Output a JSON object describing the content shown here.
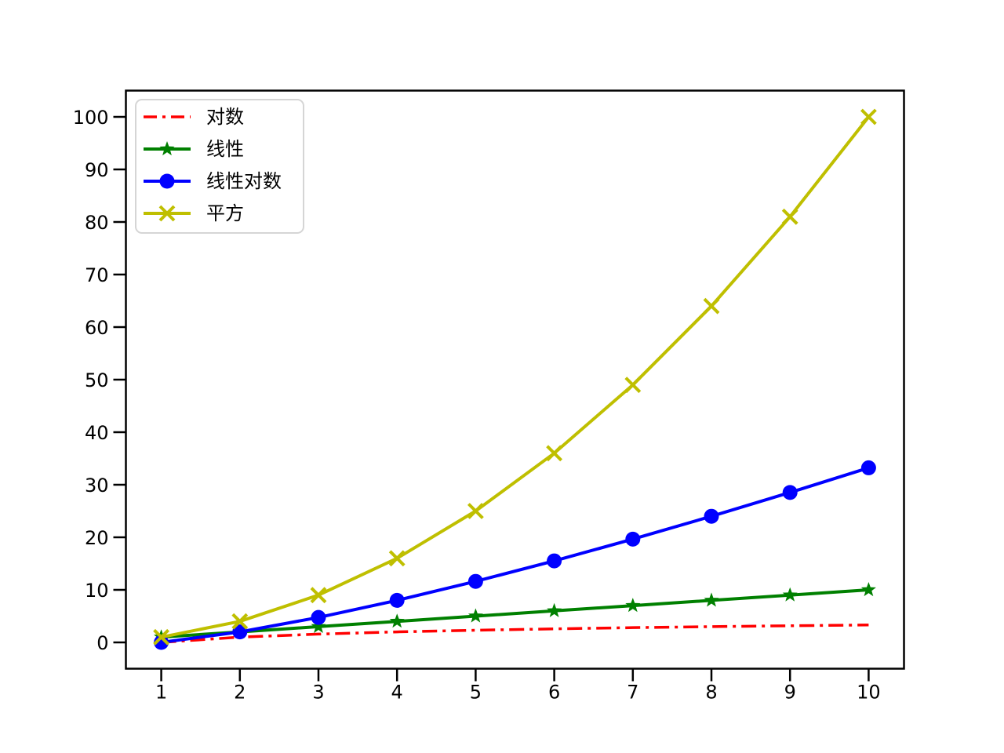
{
  "chart_data": {
    "type": "line",
    "title": "",
    "xlabel": "",
    "ylabel": "",
    "x": [
      1,
      2,
      3,
      4,
      5,
      6,
      7,
      8,
      9,
      10
    ],
    "series": [
      {
        "key": "log",
        "name": "对数",
        "values": [
          0,
          1,
          1.58,
          2,
          2.32,
          2.58,
          2.81,
          3,
          3.17,
          3.32
        ],
        "color": "#ff0000",
        "linestyle": "dashdot",
        "marker": "none"
      },
      {
        "key": "linear",
        "name": "线性",
        "values": [
          1,
          2,
          3,
          4,
          5,
          6,
          7,
          8,
          9,
          10
        ],
        "color": "#008000",
        "linestyle": "solid",
        "marker": "star"
      },
      {
        "key": "nlogn",
        "name": "线性对数",
        "values": [
          0,
          2,
          4.75,
          8,
          11.61,
          15.51,
          19.65,
          24,
          28.53,
          33.22
        ],
        "color": "#0000ff",
        "linestyle": "solid",
        "marker": "circle"
      },
      {
        "key": "square",
        "name": "平方",
        "values": [
          1,
          4,
          9,
          16,
          25,
          36,
          49,
          64,
          81,
          100
        ],
        "color": "#bfbf00",
        "linestyle": "solid",
        "marker": "x"
      }
    ],
    "xticks": [
      1,
      2,
      3,
      4,
      5,
      6,
      7,
      8,
      9,
      10
    ],
    "yticks": [
      0,
      10,
      20,
      30,
      40,
      50,
      60,
      70,
      80,
      90,
      100
    ],
    "xlim": [
      0.55,
      10.45
    ],
    "ylim": [
      -5,
      105
    ],
    "grid": false,
    "legend_position": "upper left",
    "axis_color": "#000000",
    "legend_border_color": "#d5d5d5",
    "legend_bg_color": "#ffffff"
  }
}
